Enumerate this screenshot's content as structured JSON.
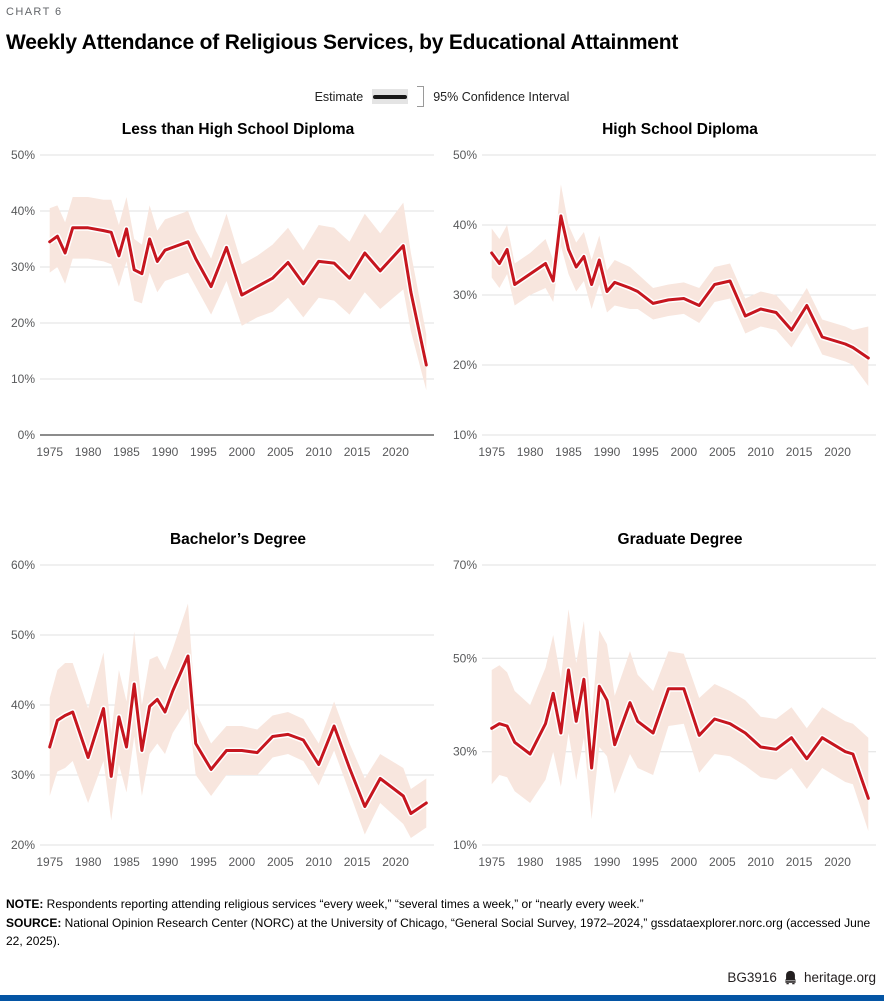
{
  "header": {
    "kicker": "CHART 6",
    "title": "Weekly Attendance of Religious Services, by Educational Attainment"
  },
  "legend": {
    "estimate_label": "Estimate",
    "ci_label": "95% Confidence Interval"
  },
  "colors": {
    "line": "#c6161f",
    "band": "#f8e6de",
    "grid": "#e0e0e0",
    "axis": "#8c8c8c",
    "tick_text": "#58595b",
    "legend_line": "#1a1a1a",
    "bottom_bar": "#0455a4"
  },
  "chart_data": [
    {
      "type": "line",
      "title": "Less than High School Diploma",
      "xlim": [
        1974,
        2025
      ],
      "ylim": [
        0,
        50
      ],
      "yticks": [
        0,
        10,
        20,
        30,
        40,
        50
      ],
      "ytick_labels": [
        "0%",
        "10%",
        "20%",
        "30%",
        "40%",
        "50%"
      ],
      "xticks": [
        1975,
        1980,
        1985,
        1990,
        1995,
        2000,
        2005,
        2010,
        2015,
        2020
      ],
      "baseline": true,
      "x": [
        1975,
        1976,
        1977,
        1978,
        1980,
        1982,
        1983,
        1984,
        1985,
        1986,
        1987,
        1988,
        1989,
        1990,
        1991,
        1993,
        1994,
        1996,
        1998,
        2000,
        2002,
        2004,
        2006,
        2008,
        2010,
        2012,
        2014,
        2016,
        2018,
        2021,
        2022,
        2024
      ],
      "values": [
        34.5,
        35.5,
        32.5,
        37,
        37,
        36.5,
        36.2,
        32,
        36.8,
        29.5,
        28.8,
        35,
        31,
        33,
        33.5,
        34.5,
        31.5,
        26.5,
        33.5,
        25,
        26.5,
        28,
        30.8,
        27,
        31,
        30.7,
        28,
        32.5,
        29.3,
        33.8,
        25.5,
        12.5
      ],
      "ci_lower": [
        29,
        30,
        27,
        31.5,
        31.5,
        31,
        30.5,
        26.5,
        31,
        24,
        23.5,
        29,
        25.5,
        27.5,
        28,
        29,
        26.5,
        21.5,
        27.5,
        19.5,
        21,
        22,
        24.5,
        21,
        24.5,
        24,
        21.5,
        25.5,
        22.5,
        26,
        18.5,
        8
      ],
      "ci_upper": [
        40.5,
        41,
        38,
        42.5,
        42.5,
        42,
        42,
        37.5,
        42.5,
        35,
        34,
        41,
        36.5,
        38.5,
        39,
        40,
        36.5,
        31.5,
        39.5,
        30.5,
        32,
        34,
        37,
        33,
        37.5,
        37,
        34.5,
        39.5,
        36,
        41.5,
        32.5,
        18
      ]
    },
    {
      "type": "line",
      "title": "High School Diploma",
      "xlim": [
        1974,
        2025
      ],
      "ylim": [
        10,
        50
      ],
      "yticks": [
        10,
        20,
        30,
        40,
        50
      ],
      "ytick_labels": [
        "10%",
        "20%",
        "30%",
        "40%",
        "50%"
      ],
      "xticks": [
        1975,
        1980,
        1985,
        1990,
        1995,
        2000,
        2005,
        2010,
        2015,
        2020
      ],
      "baseline": false,
      "x": [
        1975,
        1976,
        1977,
        1978,
        1980,
        1982,
        1983,
        1984,
        1985,
        1986,
        1987,
        1988,
        1989,
        1990,
        1991,
        1993,
        1994,
        1996,
        1998,
        2000,
        2002,
        2004,
        2006,
        2008,
        2010,
        2012,
        2014,
        2016,
        2018,
        2021,
        2022,
        2024
      ],
      "values": [
        36,
        34.5,
        36.5,
        31.5,
        33,
        34.5,
        32,
        41.3,
        36.5,
        34,
        35.5,
        31.5,
        35,
        30.5,
        31.8,
        31,
        30.5,
        28.8,
        29.3,
        29.5,
        28.5,
        31.5,
        32,
        27,
        28,
        27.5,
        25,
        28.5,
        24,
        23,
        22.5,
        21
      ],
      "ci_lower": [
        32.5,
        31,
        33,
        28.5,
        30,
        31,
        29,
        37,
        33,
        30.5,
        32,
        28,
        31.5,
        27.5,
        28.5,
        28,
        28,
        26.5,
        27,
        27.3,
        26,
        29,
        29.5,
        24.5,
        25.5,
        25,
        22.5,
        26,
        21.5,
        20.5,
        20,
        17
      ],
      "ci_upper": [
        39.5,
        38,
        40,
        34.5,
        36,
        38,
        35,
        45.8,
        40,
        37.5,
        39,
        35,
        38.5,
        33.5,
        35,
        34,
        33,
        31,
        31.5,
        31.8,
        31,
        34,
        34.5,
        29.5,
        30.5,
        30,
        27.5,
        31,
        26.5,
        25.5,
        25,
        25.5
      ]
    },
    {
      "type": "line",
      "title": "Bachelor’s Degree",
      "xlim": [
        1974,
        2025
      ],
      "ylim": [
        20,
        60
      ],
      "yticks": [
        20,
        30,
        40,
        50,
        60
      ],
      "ytick_labels": [
        "20%",
        "30%",
        "40%",
        "50%",
        "60%"
      ],
      "xticks": [
        1975,
        1980,
        1985,
        1990,
        1995,
        2000,
        2005,
        2010,
        2015,
        2020
      ],
      "baseline": false,
      "x": [
        1975,
        1976,
        1977,
        1978,
        1980,
        1982,
        1983,
        1984,
        1985,
        1986,
        1987,
        1988,
        1989,
        1990,
        1991,
        1993,
        1994,
        1996,
        1998,
        2000,
        2002,
        2004,
        2006,
        2008,
        2010,
        2012,
        2014,
        2016,
        2018,
        2021,
        2022,
        2024
      ],
      "values": [
        34,
        37.8,
        38.5,
        39,
        32.5,
        39.5,
        29.8,
        38.3,
        34,
        43,
        33.5,
        39.8,
        40.8,
        39,
        42,
        47,
        34.5,
        30.8,
        33.5,
        33.5,
        33.2,
        35.5,
        35.8,
        35,
        31.5,
        37,
        31,
        25.5,
        29.5,
        27,
        24.5,
        26
      ],
      "ci_lower": [
        27,
        30.5,
        31,
        32,
        26,
        32,
        23.5,
        31.5,
        27.5,
        35.5,
        27,
        33,
        34.5,
        33,
        36,
        39.5,
        30,
        27,
        30,
        30,
        30,
        32.5,
        33,
        32,
        28.5,
        33.5,
        27.5,
        21.5,
        26,
        23,
        21,
        22.5
      ],
      "ci_upper": [
        41,
        45,
        46,
        46,
        39.5,
        47.5,
        36,
        45,
        40.5,
        50.5,
        40,
        46.5,
        47,
        45,
        48,
        54.5,
        39,
        34.5,
        37,
        37,
        36.5,
        38.5,
        39,
        38,
        34.5,
        40.5,
        34.5,
        29.5,
        33,
        31,
        28,
        29.5
      ]
    },
    {
      "type": "line",
      "title": "Graduate Degree",
      "xlim": [
        1974,
        2025
      ],
      "ylim": [
        10,
        70
      ],
      "yticks": [
        10,
        30,
        50,
        70
      ],
      "ytick_labels": [
        "10%",
        "30%",
        "50%",
        "70%"
      ],
      "xticks": [
        1975,
        1980,
        1985,
        1990,
        1995,
        2000,
        2005,
        2010,
        2015,
        2020
      ],
      "baseline": false,
      "x": [
        1975,
        1976,
        1977,
        1978,
        1980,
        1982,
        1983,
        1984,
        1985,
        1986,
        1987,
        1988,
        1989,
        1990,
        1991,
        1993,
        1994,
        1996,
        1998,
        2000,
        2002,
        2004,
        2006,
        2008,
        2010,
        2012,
        2014,
        2016,
        2018,
        2021,
        2022,
        2024
      ],
      "values": [
        35,
        36,
        35.5,
        32,
        29.5,
        36,
        42.5,
        34,
        47.5,
        36.5,
        45.5,
        26.5,
        44,
        41,
        31.5,
        40.5,
        36.5,
        34,
        43.5,
        43.5,
        33.5,
        37,
        36,
        34,
        31,
        30.5,
        33,
        28.5,
        33,
        30,
        29.5,
        20
      ],
      "ci_lower": [
        23,
        25,
        24.5,
        21.5,
        19,
        24,
        30,
        22.5,
        34,
        24,
        33,
        15.5,
        31,
        29,
        21,
        29.5,
        26.5,
        25,
        35.5,
        36,
        25.5,
        29.5,
        29,
        27,
        24.5,
        24,
        26.5,
        22,
        26.5,
        23.5,
        23,
        13
      ],
      "ci_upper": [
        47.5,
        48.5,
        47,
        43,
        40,
        48,
        55,
        45.5,
        60.5,
        49,
        58,
        37.5,
        56,
        53,
        42,
        51.5,
        46.5,
        43,
        51.5,
        51,
        41.5,
        44.5,
        43,
        41,
        37.5,
        37,
        39.5,
        35,
        39.5,
        36.5,
        36,
        33
      ]
    }
  ],
  "footer": {
    "note_label": "NOTE:",
    "note_text": " Respondents reporting attending religious services “every week,” “several times a week,” or “nearly every week.”",
    "source_label": "SOURCE:",
    "source_text": " National Opinion Research Center (NORC) at the University of Chicago, “General Social Survey, 1972–2024,” gssdataexplorer.norc.org (accessed June 22, 2025).",
    "report_id": "BG3916",
    "site": "heritage.org"
  }
}
